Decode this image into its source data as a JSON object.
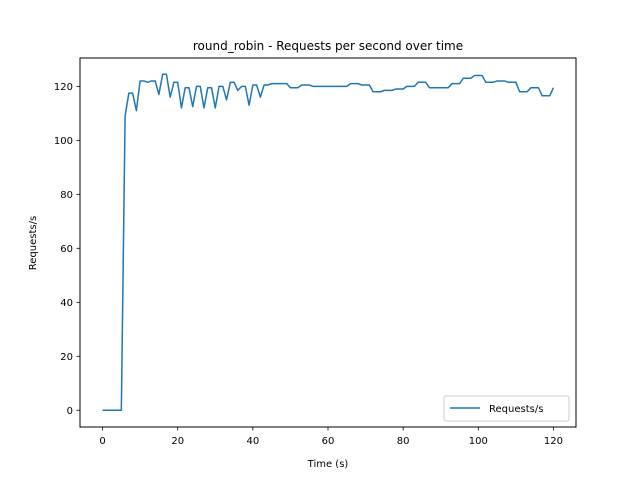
{
  "chart_data": {
    "type": "line",
    "title": "round_robin - Requests per second over time",
    "xlabel": "Time (s)",
    "ylabel": "Requests/s",
    "xlim": [
      -6,
      126
    ],
    "ylim": [
      -6.2,
      130.5
    ],
    "xticks": [
      0,
      20,
      40,
      60,
      80,
      100,
      120
    ],
    "yticks": [
      0,
      20,
      40,
      60,
      80,
      100,
      120
    ],
    "grid": false,
    "legend_position": "lower-right",
    "series": [
      {
        "name": "Requests/s",
        "color": "#1f77b4",
        "x": [
          0,
          1,
          2,
          3,
          4,
          5,
          6,
          7,
          8,
          9,
          10,
          11,
          12,
          13,
          14,
          15,
          16,
          17,
          18,
          19,
          20,
          21,
          22,
          23,
          24,
          25,
          26,
          27,
          28,
          29,
          30,
          31,
          32,
          33,
          34,
          35,
          36,
          37,
          38,
          39,
          40,
          41,
          42,
          43,
          44,
          45,
          46,
          47,
          48,
          49,
          50,
          51,
          52,
          53,
          54,
          55,
          56,
          57,
          58,
          59,
          60,
          61,
          62,
          63,
          64,
          65,
          66,
          67,
          68,
          69,
          70,
          71,
          72,
          73,
          74,
          75,
          76,
          77,
          78,
          79,
          80,
          81,
          82,
          83,
          84,
          85,
          86,
          87,
          88,
          89,
          90,
          91,
          92,
          93,
          94,
          95,
          96,
          97,
          98,
          99,
          100,
          101,
          102,
          103,
          104,
          105,
          106,
          107,
          108,
          109,
          110,
          111,
          112,
          113,
          114,
          115,
          116,
          117,
          118,
          119,
          120
        ],
        "y": [
          0,
          0,
          0,
          0,
          0,
          0,
          109,
          117.5,
          117.5,
          111,
          122,
          122,
          121.5,
          122,
          122,
          117,
          124.5,
          124.5,
          116,
          121.5,
          121.5,
          112,
          119.5,
          119.5,
          112.5,
          120,
          120,
          112,
          119.5,
          119.5,
          112,
          120,
          120,
          115,
          121.5,
          121.5,
          118.5,
          120,
          120,
          113,
          120.5,
          120.5,
          116,
          120.5,
          120.5,
          121,
          121,
          121,
          121,
          121,
          119.5,
          119.5,
          119.5,
          120.5,
          120.5,
          120.5,
          120,
          120,
          120,
          120,
          120,
          120,
          120,
          120,
          120,
          120,
          121,
          121,
          121,
          120.5,
          120.5,
          120.5,
          118,
          118,
          118,
          118.5,
          118.5,
          118.5,
          119,
          119,
          119,
          120,
          120,
          120,
          121.5,
          121.5,
          121.5,
          119.5,
          119.5,
          119.5,
          119.5,
          119.5,
          119.5,
          121,
          121,
          121,
          123,
          123,
          123,
          124,
          124,
          124,
          121.5,
          121.5,
          121.5,
          122,
          122,
          122,
          121.5,
          121.5,
          121.5,
          118,
          118,
          118,
          119.5,
          119.5,
          119.5,
          116.5,
          116.5,
          116.5,
          119.5
        ]
      }
    ]
  }
}
